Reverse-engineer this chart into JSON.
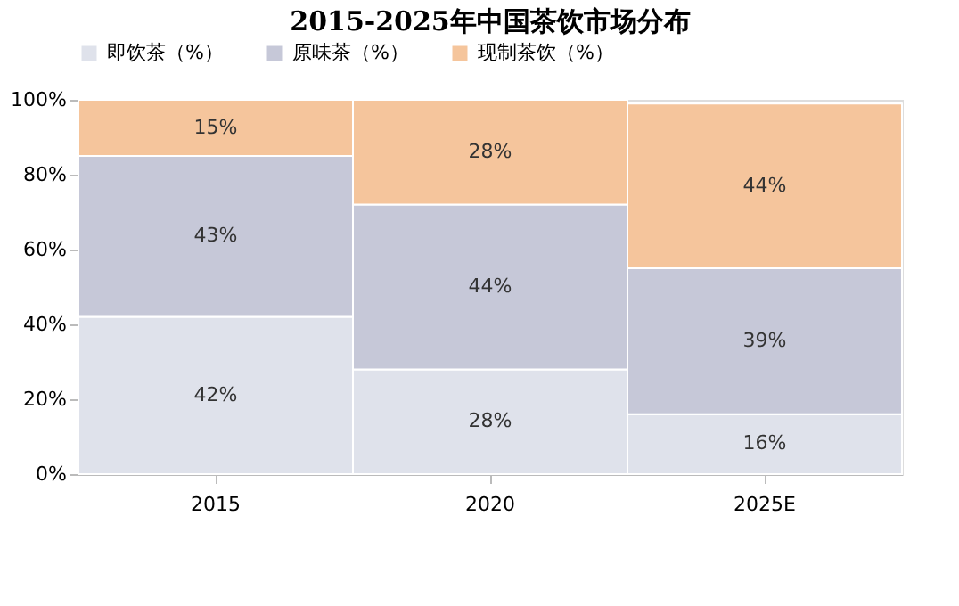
{
  "chart_data": {
    "type": "bar",
    "title": "2015-2025年中国茶饮市场分布",
    "categories": [
      "2015",
      "2020",
      "2025E"
    ],
    "stacked": true,
    "legend": "top",
    "grid": false,
    "ylim": [
      0,
      100
    ],
    "yticks": [
      {
        "value": 0,
        "label": "0%"
      },
      {
        "value": 20,
        "label": "20%"
      },
      {
        "value": 40,
        "label": "40%"
      },
      {
        "value": 60,
        "label": "60%"
      },
      {
        "value": 80,
        "label": "80%"
      },
      {
        "value": 100,
        "label": "100%"
      }
    ],
    "series": [
      {
        "name": "即饮茶（%）",
        "color": "#dfe2eb",
        "values": [
          42,
          28,
          16
        ],
        "value_labels": [
          "42%",
          "28%",
          "16%"
        ]
      },
      {
        "name": "原味茶（%）",
        "color": "#c6c8d8",
        "values": [
          43,
          44,
          39
        ],
        "value_labels": [
          "43%",
          "44%",
          "39%"
        ]
      },
      {
        "name": "现制茶饮（%）",
        "color": "#f5c59c",
        "values": [
          15,
          28,
          44
        ],
        "value_labels": [
          "15%",
          "28%",
          "44%"
        ]
      }
    ]
  }
}
